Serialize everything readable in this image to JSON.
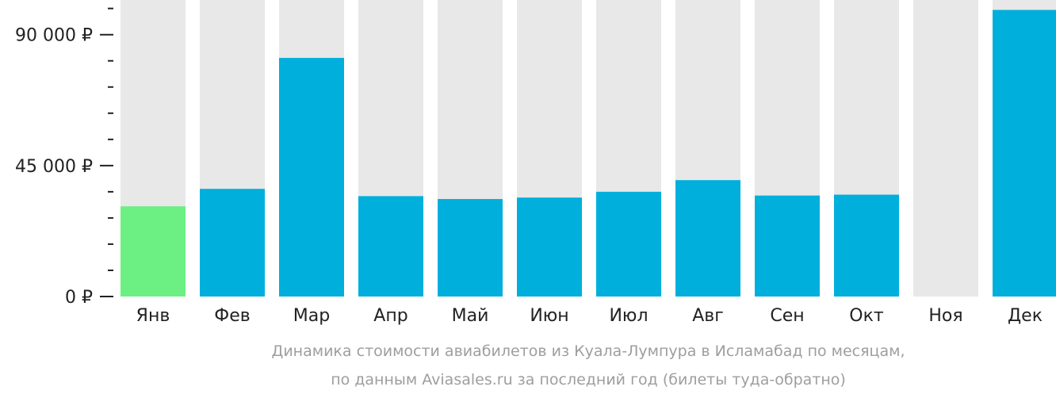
{
  "chart_data": {
    "type": "bar",
    "categories": [
      "Янв",
      "Фев",
      "Мар",
      "Апр",
      "Май",
      "Июн",
      "Июл",
      "Авг",
      "Сен",
      "Окт",
      "Ноя",
      "Дек"
    ],
    "values": [
      31000,
      37000,
      82000,
      34500,
      33500,
      34000,
      36000,
      40000,
      34700,
      35000,
      null,
      98500
    ],
    "ylim": [
      0,
      100000
    ],
    "yticks": [
      0,
      45000,
      90000
    ],
    "ytick_labels": [
      "0 ₽",
      "45 000 ₽",
      "90 000 ₽"
    ],
    "minor_tick_step": 9000,
    "caption_line1": "Динамика стоимости авиабилетов из Куала-Лумпура в Исламабад по месяцам,",
    "caption_line2": "по данным Aviasales.ru за последний год (билеты туда-обратно)",
    "grid": false,
    "colors": {
      "bar_background": "#e8e8e8",
      "bar_default": "#00afdc",
      "bar_cheapest": "#6cf083",
      "axis": "#222222",
      "caption": "#9e9e9e"
    }
  }
}
